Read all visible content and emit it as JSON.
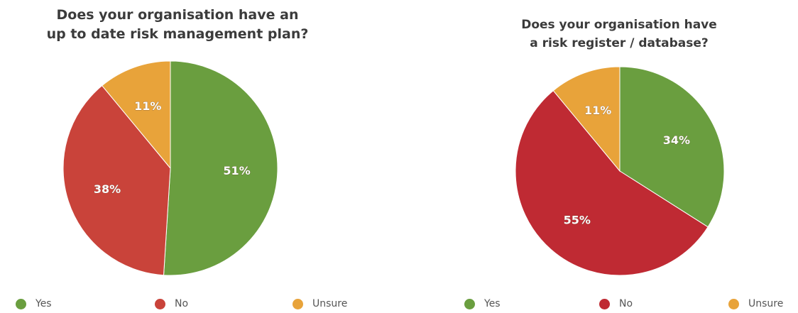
{
  "chart_data": [
    {
      "type": "pie",
      "title_lines": [
        "Does your organisation have an",
        "up to date risk management plan?"
      ],
      "slices": [
        {
          "label": "Yes",
          "value": 51,
          "value_label": "51%",
          "color": "#6a9e3f"
        },
        {
          "label": "No",
          "value": 38,
          "value_label": "38%",
          "color": "#c9433a"
        },
        {
          "label": "Unsure",
          "value": 11,
          "value_label": "11%",
          "color": "#e8a33a"
        }
      ],
      "legend": [
        {
          "label": "Yes",
          "color": "#6a9e3f"
        },
        {
          "label": "No",
          "color": "#c9433a"
        },
        {
          "label": "Unsure",
          "color": "#e8a33a"
        }
      ],
      "legend_position": "bottom",
      "start_angle": "top",
      "direction": "clockwise"
    },
    {
      "type": "pie",
      "title_lines": [
        "Does your organisation have",
        "a risk register / database?"
      ],
      "slices": [
        {
          "label": "Yes",
          "value": 34,
          "value_label": "34%",
          "color": "#6a9e3f"
        },
        {
          "label": "No",
          "value": 55,
          "value_label": "55%",
          "color": "#bf2a33"
        },
        {
          "label": "Unsure",
          "value": 11,
          "value_label": "11%",
          "color": "#e8a33a"
        }
      ],
      "legend": [
        {
          "label": "Yes",
          "color": "#6a9e3f"
        },
        {
          "label": "No",
          "color": "#bf2a33"
        },
        {
          "label": "Unsure",
          "color": "#e8a33a"
        }
      ],
      "legend_position": "bottom",
      "start_angle": "top",
      "direction": "clockwise"
    }
  ]
}
